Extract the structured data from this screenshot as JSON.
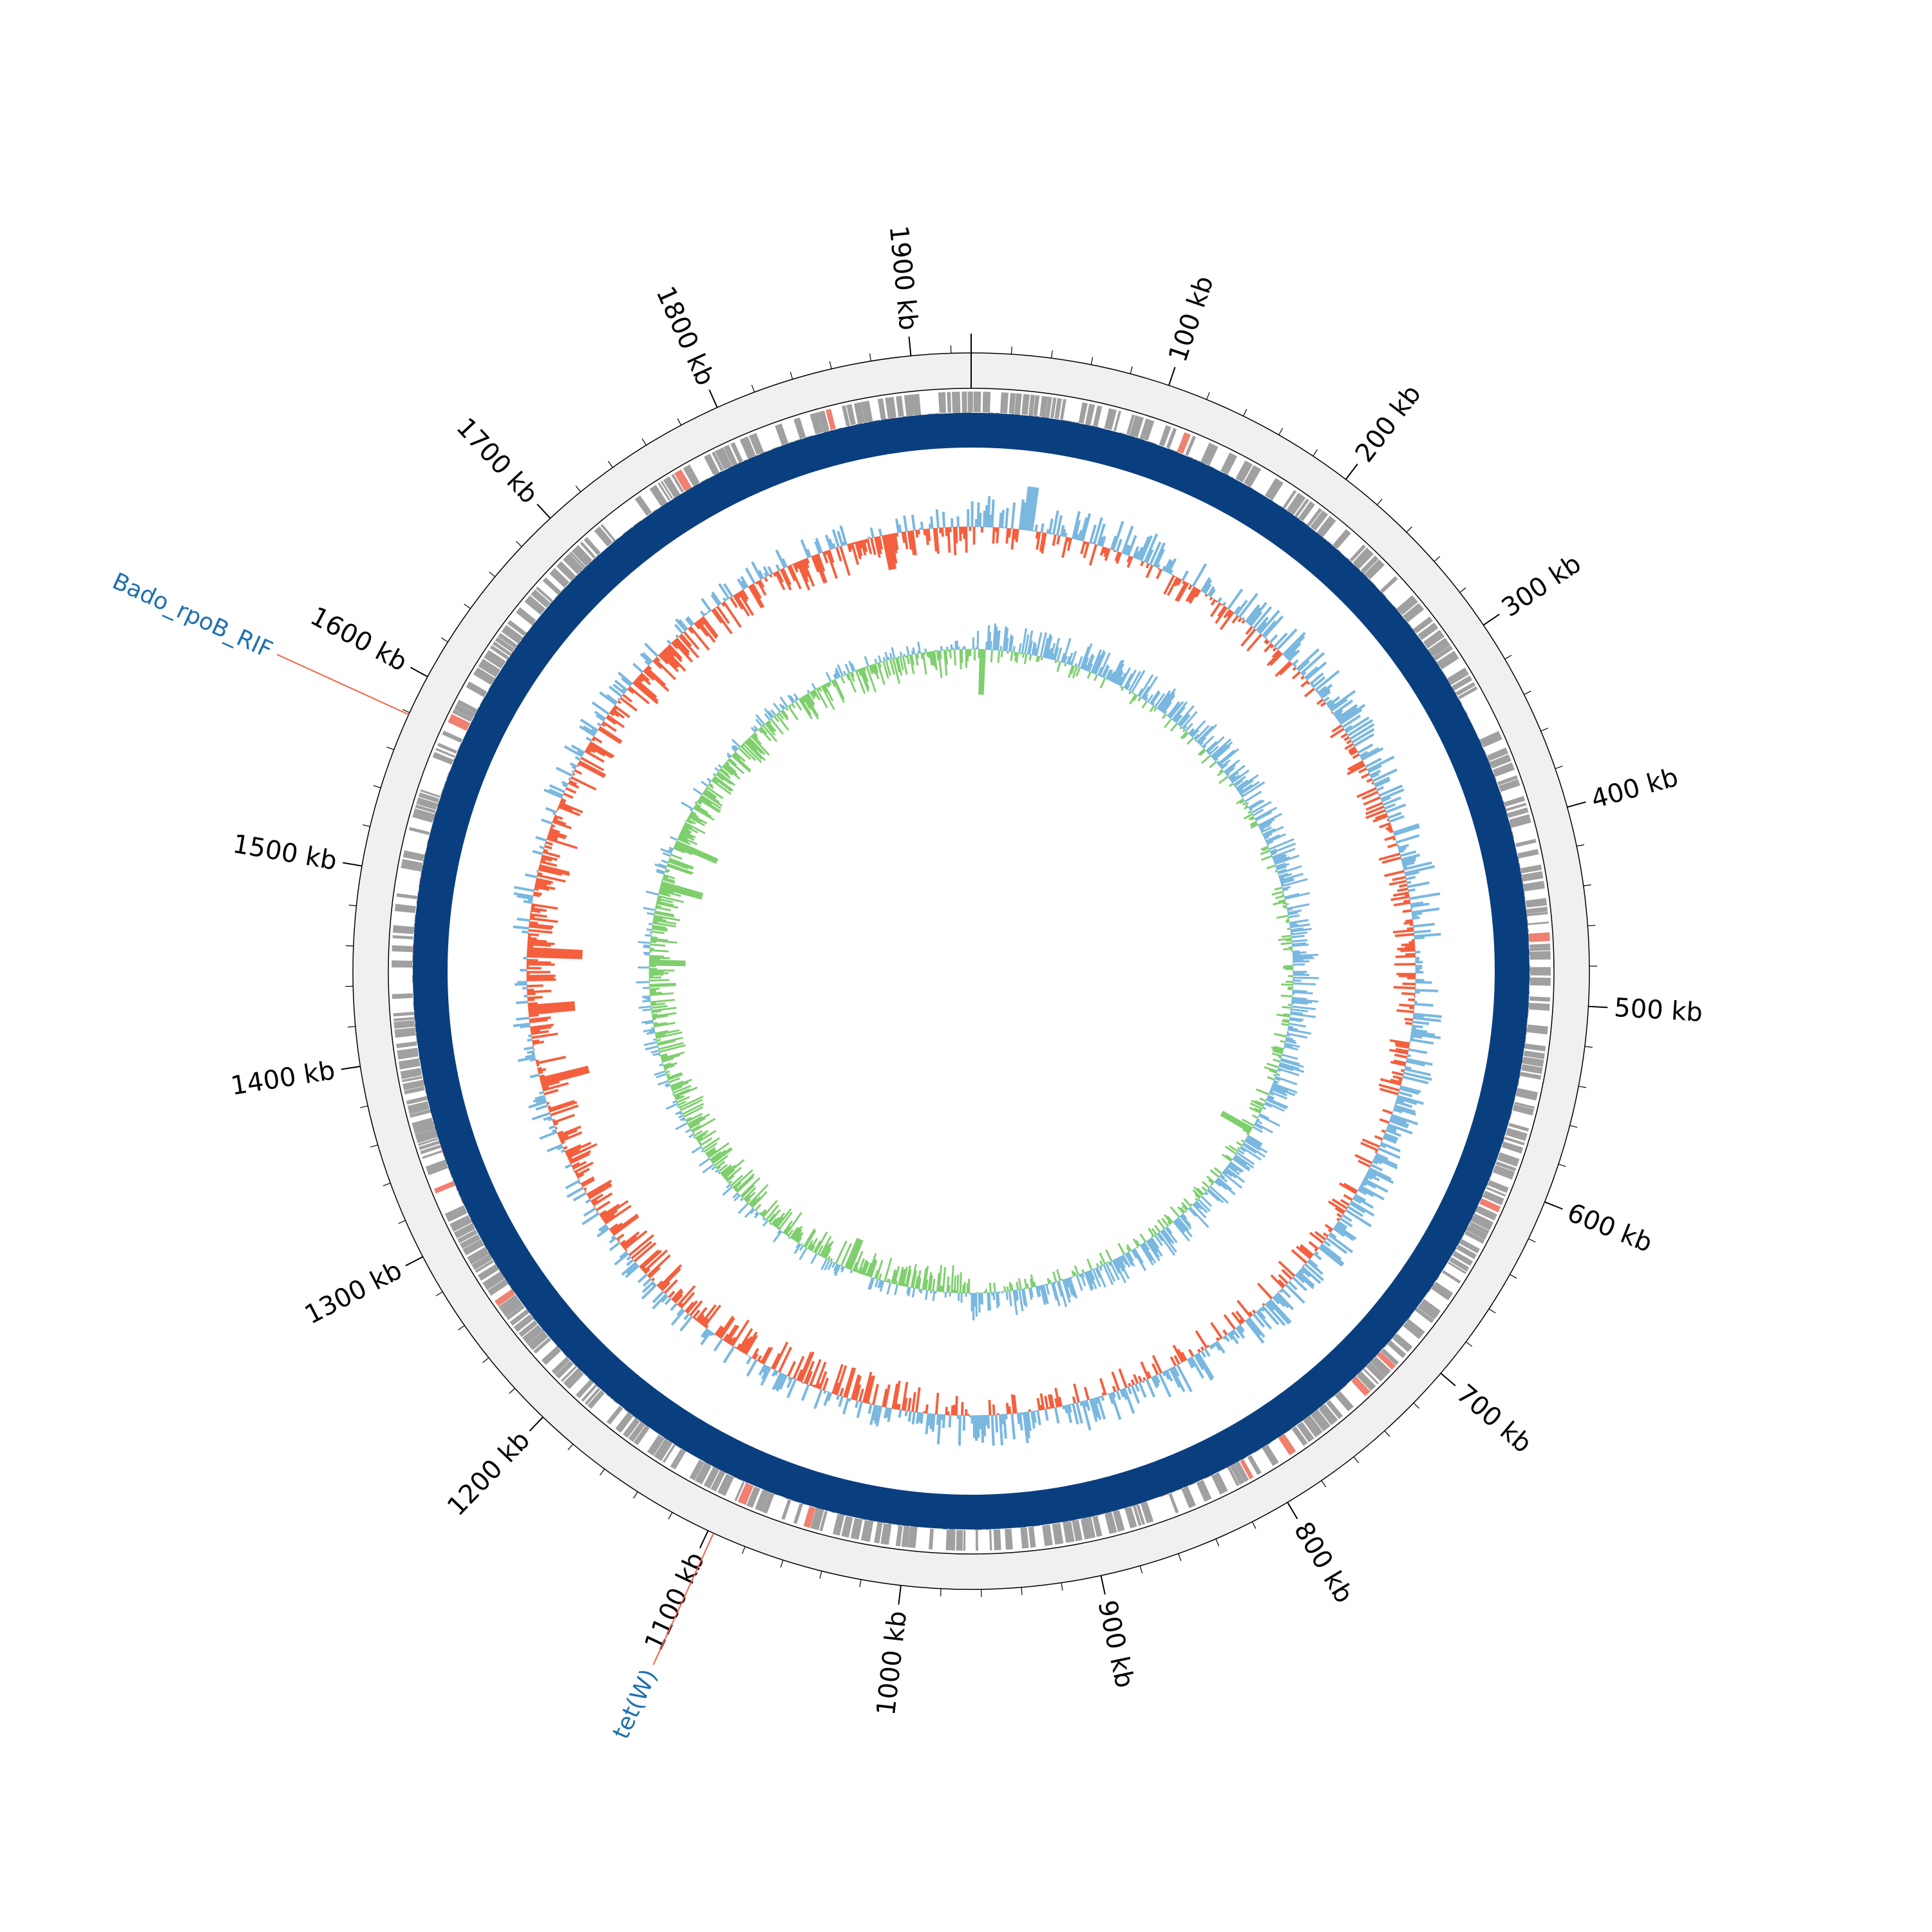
{
  "genome": {
    "length_kb": 1930,
    "tick_labels_kb": [
      100,
      200,
      300,
      400,
      500,
      600,
      700,
      800,
      900,
      1000,
      1100,
      1200,
      1300,
      1400,
      1500,
      1600,
      1700,
      1800,
      1900
    ],
    "tick_suffix": " kb",
    "minor_tick_step_kb": 20
  },
  "annotations": [
    {
      "label": "Bado_rpoB_RIF",
      "position_kb": 1579,
      "text_color": "#1f6fb0",
      "line_color": "#f4603f"
    },
    {
      "label": "tet(W)",
      "position_kb": 1097,
      "text_color": "#1f6fb0",
      "line_color": "#f4603f"
    }
  ],
  "tracks": {
    "backbone_color": "#f0f0f0",
    "cds_color": "#a0a0a0",
    "cds_highlight_color": "#f08070",
    "contig_color": "#0a3f7f",
    "gc_positive_color": "#7ab8e0",
    "gc_negative_color": "#f4603f",
    "skew_positive_color": "#7ab8e0",
    "skew_negative_color": "#7fcf6f"
  }
}
